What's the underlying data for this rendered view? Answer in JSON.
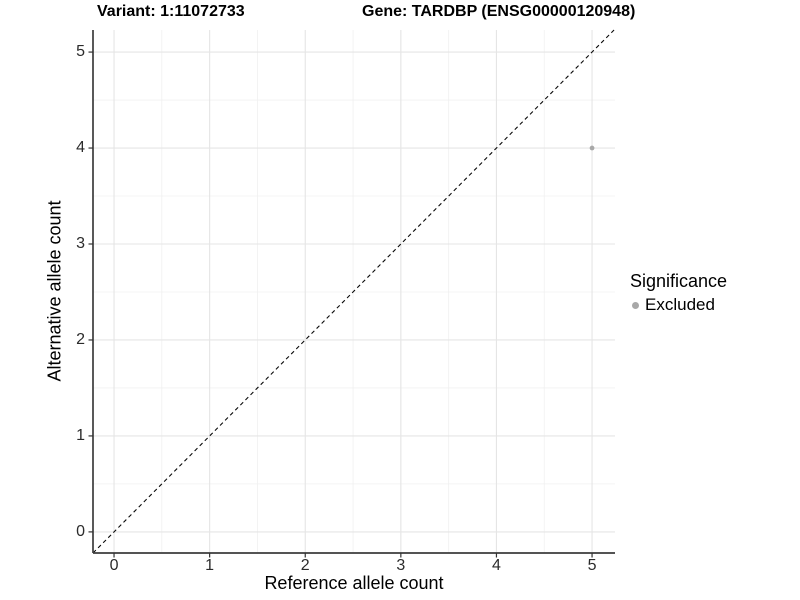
{
  "titles": {
    "variant": "Variant: 1:11072733",
    "gene": "Gene: TARDBP (ENSG00000120948)"
  },
  "colors": {
    "background": "#ffffff",
    "point": "#a8a8a8",
    "grid_major": "#e5e5e5",
    "grid_minor": "#f0f0f0",
    "axis_line": "#3c3c3c",
    "tick_mark": "#333333",
    "identity_line": "#0a0a0a",
    "tick_text": "#2b2b2b"
  },
  "chart_data": {
    "type": "scatter",
    "title_left": "Variant: 1:11072733",
    "title_right": "Gene: TARDBP (ENSG00000120948)",
    "xlabel": "Reference allele count",
    "ylabel": "Alternative allele count",
    "xlim": [
      -0.22,
      5.24
    ],
    "ylim": [
      -0.22,
      5.23
    ],
    "xticks": [
      0,
      1,
      2,
      3,
      4,
      5
    ],
    "yticks": [
      0,
      1,
      2,
      3,
      4,
      5
    ],
    "grid": "major+minor",
    "minor_grid_step": 0.5,
    "identity_line": {
      "equation": "y = x",
      "style": "dashed",
      "color": "#0a0a0a"
    },
    "series": [
      {
        "name": "Excluded",
        "color": "#a8a8a8",
        "points": [
          {
            "x": 5,
            "y": 4
          }
        ]
      }
    ],
    "legend": {
      "title": "Significance",
      "position": "right",
      "items": [
        {
          "label": "Excluded",
          "color": "#a8a8a8"
        }
      ]
    }
  }
}
